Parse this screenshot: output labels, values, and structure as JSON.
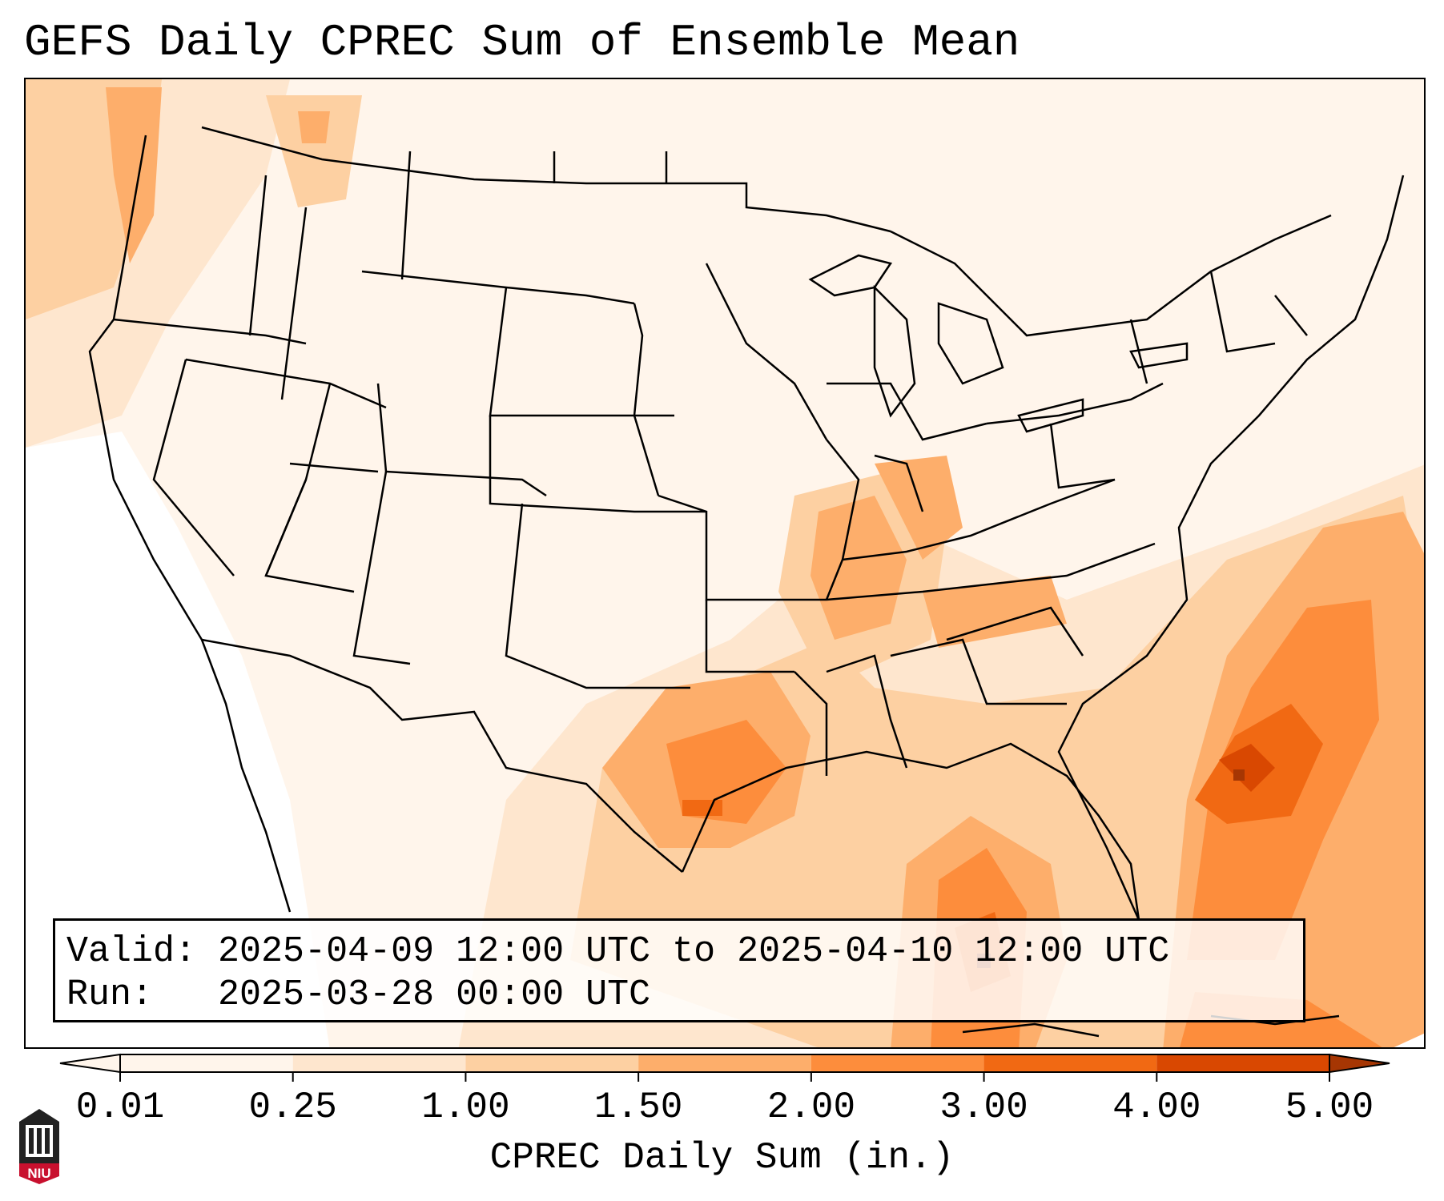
{
  "title": "GEFS Daily CPREC Sum of Ensemble Mean",
  "info": {
    "valid_label": "Valid:",
    "valid_value": "2025-04-09 12:00 UTC to 2025-04-10 12:00 UTC",
    "run_label": "Run:",
    "run_value": "2025-03-28 00:00 UTC"
  },
  "colorbar": {
    "label": "CPREC Daily Sum (in.)",
    "ticks": [
      "0.01",
      "0.25",
      "1.00",
      "1.50",
      "2.00",
      "3.00",
      "4.00",
      "5.00"
    ],
    "colors": [
      "#fff5eb",
      "#fee6ce",
      "#fdd0a2",
      "#fdae6b",
      "#fd8d3c",
      "#f16913",
      "#d94801",
      "#a63603"
    ],
    "extend": "both"
  },
  "map": {
    "region": "Contiguous United States",
    "colormap": "Oranges",
    "basemap_features": [
      "coastlines",
      "state-borders",
      "country-borders"
    ]
  },
  "logo": {
    "text": "NIU"
  }
}
